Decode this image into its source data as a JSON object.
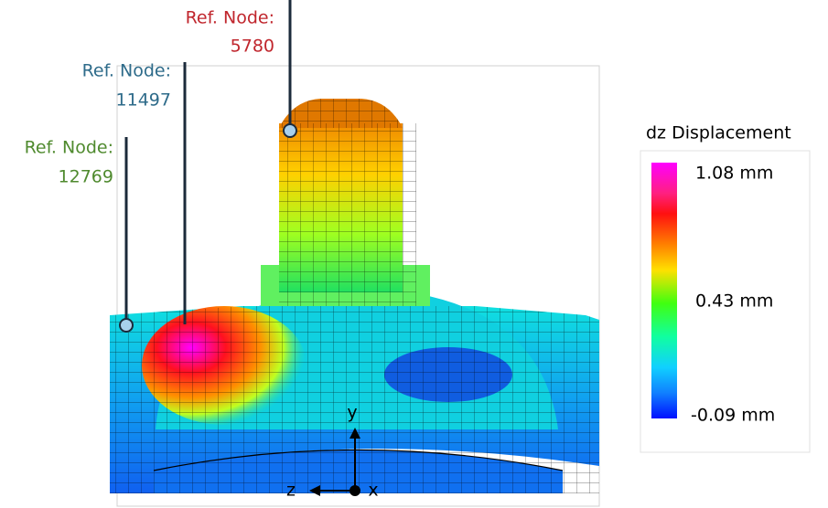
{
  "annotations": [
    {
      "label": "Ref. Node:",
      "node": "5780",
      "color": "#c0262d"
    },
    {
      "label": "Ref. Node:",
      "node": "11497",
      "color": "#2e6b8a"
    },
    {
      "label": "Ref. Node:",
      "node": "12769",
      "color": "#4f8a2e"
    }
  ],
  "legend": {
    "title": "dz Displacement",
    "labels": [
      "1.08 mm",
      "0.43 mm",
      "-0.09 mm"
    ]
  },
  "axes": {
    "y": "y",
    "z": "z",
    "x": "x"
  }
}
